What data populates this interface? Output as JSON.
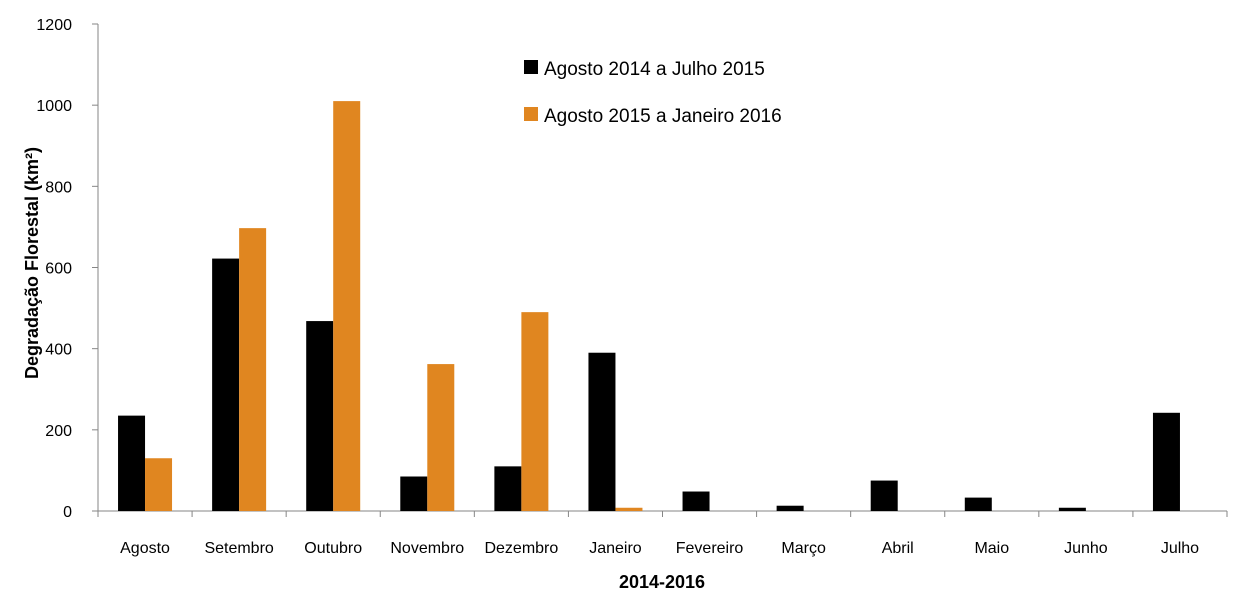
{
  "chart_data": {
    "type": "bar",
    "title": "",
    "xlabel": "2014-2016",
    "ylabel": "Degradação Florestal (km²)",
    "ylim": [
      0,
      1200
    ],
    "yticks": [
      0,
      200,
      400,
      600,
      800,
      1000,
      1200
    ],
    "grid": false,
    "legend_position": "top-center",
    "categories": [
      "Agosto",
      "Setembro",
      "Outubro",
      "Novembro",
      "Dezembro",
      "Janeiro",
      "Fevereiro",
      "Março",
      "Abril",
      "Maio",
      "Junho",
      "Julho"
    ],
    "series": [
      {
        "name": "Agosto 2014 a Julho 2015",
        "color": "#000000",
        "values": [
          235,
          622,
          468,
          85,
          110,
          390,
          48,
          13,
          75,
          33,
          8,
          242
        ]
      },
      {
        "name": "Agosto 2015 a Janeiro 2016",
        "color": "#e08620",
        "values": [
          130,
          697,
          1010,
          362,
          490,
          8,
          null,
          null,
          null,
          null,
          null,
          null
        ]
      }
    ]
  }
}
